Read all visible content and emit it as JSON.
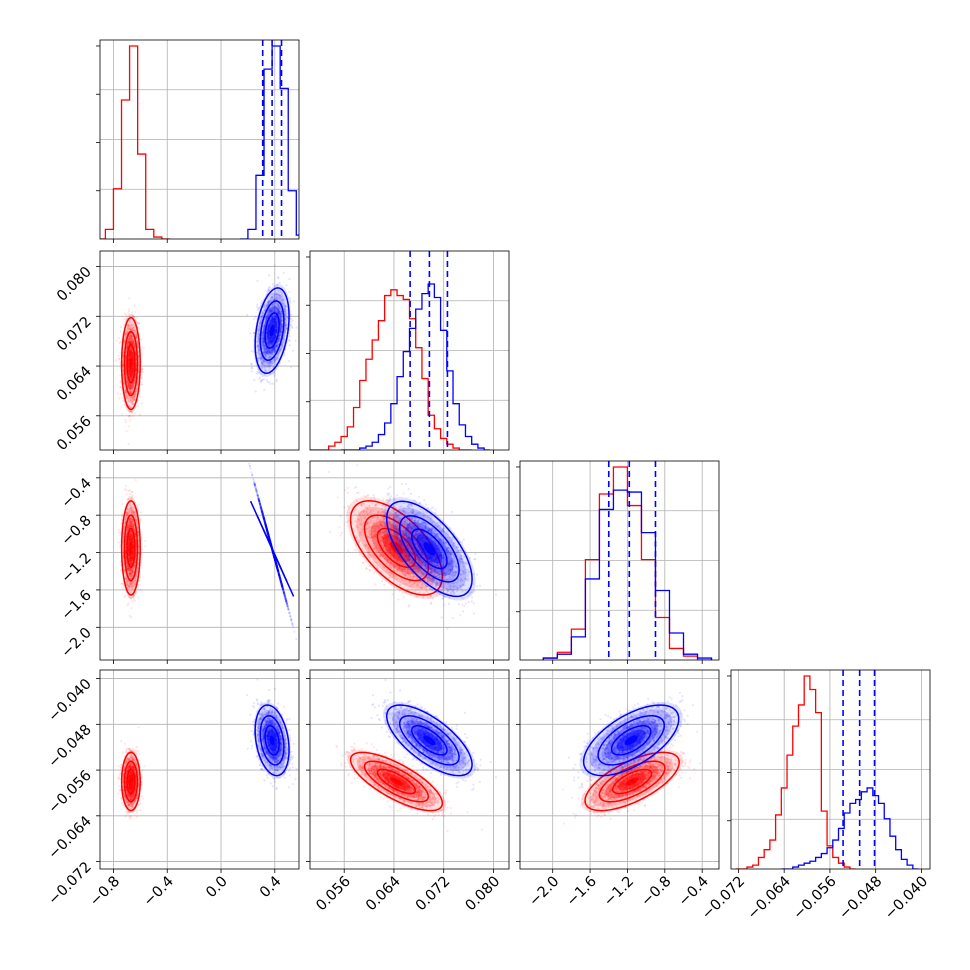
{
  "chart_data": {
    "type": "corner",
    "title": "",
    "colors": {
      "series_a": "#ff0000",
      "series_b": "#0000ff",
      "grid": "#b0b0b0",
      "frame": "#000000"
    },
    "grid": true,
    "parameters": [
      {
        "range": [
          -0.9,
          0.58
        ],
        "ticks": [
          -0.8,
          -0.4,
          0.0,
          0.4
        ],
        "tick_labels": [
          "−0.8",
          "−0.4",
          "0.0",
          "0.4"
        ]
      },
      {
        "range": [
          0.0505,
          0.0825
        ],
        "ticks": [
          0.056,
          0.064,
          0.072,
          0.08
        ],
        "tick_labels": [
          "0.056",
          "0.064",
          "0.072",
          "0.080"
        ]
      },
      {
        "range": [
          -2.35,
          -0.22
        ],
        "ticks": [
          -2.0,
          -1.6,
          -1.2,
          -0.8,
          -0.4
        ],
        "tick_labels": [
          "−2.0",
          "−1.6",
          "−1.2",
          "−0.8",
          "−0.4"
        ]
      },
      {
        "range": [
          -0.0733,
          -0.0385
        ],
        "ticks": [
          -0.072,
          -0.064,
          -0.056,
          -0.048,
          -0.04
        ],
        "tick_labels": [
          "−0.072",
          "−0.064",
          "−0.056",
          "−0.048",
          "−0.040"
        ]
      }
    ],
    "series": [
      {
        "color": "#ff0000",
        "hist_edges": [
          [
            -0.92,
            -0.86,
            -0.8,
            -0.74,
            -0.68,
            -0.62,
            -0.56,
            -0.5,
            -0.44,
            -0.38
          ],
          [
            0.0505,
            0.0515,
            0.0525,
            0.0535,
            0.0545,
            0.0555,
            0.0565,
            0.0575,
            0.0585,
            0.0595,
            0.0605,
            0.0615,
            0.0625,
            0.0635,
            0.0645,
            0.0655,
            0.0665,
            0.0675,
            0.0685,
            0.0695,
            0.0705,
            0.0715,
            0.0725,
            0.0735,
            0.0745,
            0.0755,
            0.0765
          ],
          [
            -2.1,
            -1.95,
            -1.8,
            -1.65,
            -1.5,
            -1.35,
            -1.2,
            -1.05,
            -0.9,
            -0.75,
            -0.6,
            -0.45,
            -0.3
          ],
          [
            -0.0725,
            -0.0715,
            -0.0705,
            -0.0695,
            -0.0685,
            -0.0675,
            -0.0665,
            -0.0655,
            -0.0645,
            -0.0635,
            -0.0625,
            -0.0615,
            -0.0605,
            -0.0595,
            -0.0585,
            -0.0575,
            -0.0565,
            -0.0555,
            -0.0545,
            -0.0535,
            -0.0525,
            -0.0515
          ]
        ],
        "hist_counts": [
          [
            0,
            0.05,
            0.26,
            0.72,
            1.0,
            0.44,
            0.05,
            0.01,
            0
          ],
          [
            0,
            0,
            0,
            0.02,
            0.04,
            0.07,
            0.12,
            0.22,
            0.36,
            0.47,
            0.57,
            0.67,
            0.8,
            0.83,
            0.8,
            0.78,
            0.68,
            0.53,
            0.37,
            0.18,
            0.11,
            0.06,
            0.03,
            0.01,
            0,
            0
          ],
          [
            0.01,
            0.04,
            0.16,
            0.52,
            0.86,
            1.0,
            0.8,
            0.52,
            0.22,
            0.06,
            0.02,
            0
          ],
          [
            0,
            0,
            0.01,
            0.02,
            0.06,
            0.1,
            0.15,
            0.28,
            0.42,
            0.59,
            0.74,
            0.85,
            1.0,
            0.93,
            0.81,
            0.3,
            0.12,
            0.06,
            0.03,
            0.01,
            0
          ]
        ],
        "mean": [
          -0.67,
          0.0644,
          -1.15,
          -0.058
        ],
        "cov": [
          [
            0.0009,
            0,
            0,
            0
          ],
          [
            0,
            1.03e-05,
            -0.00042,
            -5.3e-06
          ],
          [
            0,
            -0.00042,
            0.048,
            0.00032
          ],
          [
            0,
            -5.3e-06,
            0.00032,
            4.9e-06
          ]
        ]
      },
      {
        "color": "#0000ff",
        "hist_edges": [
          [
            0.14,
            0.2,
            0.26,
            0.32,
            0.38,
            0.44,
            0.5,
            0.56,
            0.62
          ],
          [
            0.0555,
            0.0565,
            0.0575,
            0.0585,
            0.0595,
            0.0605,
            0.0615,
            0.0625,
            0.0635,
            0.0645,
            0.0655,
            0.0665,
            0.0675,
            0.0685,
            0.0695,
            0.0705,
            0.0715,
            0.0725,
            0.0735,
            0.0745,
            0.0755,
            0.0765,
            0.0775,
            0.0785,
            0.0795
          ],
          [
            -2.1,
            -1.95,
            -1.8,
            -1.65,
            -1.5,
            -1.35,
            -1.2,
            -1.05,
            -0.9,
            -0.75,
            -0.6,
            -0.45,
            -0.3
          ],
          [
            -0.0645,
            -0.0635,
            -0.0625,
            -0.0615,
            -0.0605,
            -0.0595,
            -0.0585,
            -0.0575,
            -0.0565,
            -0.0555,
            -0.0545,
            -0.0535,
            -0.0525,
            -0.0515,
            -0.0505,
            -0.0495,
            -0.0485,
            -0.0475,
            -0.0465,
            -0.0455,
            -0.0445,
            -0.0435,
            -0.0425,
            -0.0415,
            -0.0405
          ]
        ],
        "hist_counts": [
          [
            0,
            0.05,
            0.33,
            0.88,
            1.0,
            0.78,
            0.25,
            0.02
          ],
          [
            0,
            0,
            0,
            0.01,
            0.02,
            0.04,
            0.08,
            0.14,
            0.24,
            0.38,
            0.51,
            0.63,
            0.73,
            0.81,
            0.86,
            0.79,
            0.62,
            0.41,
            0.24,
            0.13,
            0.07,
            0.03,
            0.01,
            0
          ],
          [
            0.01,
            0.03,
            0.12,
            0.42,
            0.78,
            0.88,
            0.87,
            0.66,
            0.36,
            0.14,
            0.03,
            0.01
          ],
          [
            0,
            0,
            0.01,
            0.02,
            0.03,
            0.04,
            0.06,
            0.08,
            0.11,
            0.15,
            0.21,
            0.29,
            0.34,
            0.36,
            0.4,
            0.42,
            0.38,
            0.34,
            0.26,
            0.17,
            0.1,
            0.05,
            0.02,
            0
          ]
        ],
        "mean": [
          0.38,
          0.0697,
          -1.16,
          -0.0508
        ],
        "cov": [
          [
            0.003,
            5.5e-05,
            -0.016,
            -4e-05
          ],
          [
            5.5e-05,
            8.9e-06,
            -0.00042,
            -5.5e-06
          ],
          [
            -0.016,
            -0.00042,
            0.049,
            0.00036
          ],
          [
            -4e-05,
            -5.5e-06,
            0.00036,
            7.2e-06
          ]
        ]
      }
    ],
    "quantile_lines": [
      {
        "param": 0,
        "values": [
          0.31,
          0.38,
          0.45
        ],
        "color": "#0000ff",
        "style": "dashed"
      },
      {
        "param": 1,
        "values": [
          0.0666,
          0.0697,
          0.0726
        ],
        "color": "#0000ff",
        "style": "dashed"
      },
      {
        "param": 2,
        "values": [
          -1.4,
          -1.18,
          -0.9
        ],
        "color": "#0000ff",
        "style": "dashed"
      },
      {
        "param": 3,
        "values": [
          -0.0537,
          -0.0508,
          -0.0482
        ],
        "color": "#0000ff",
        "style": "dashed"
      }
    ]
  }
}
